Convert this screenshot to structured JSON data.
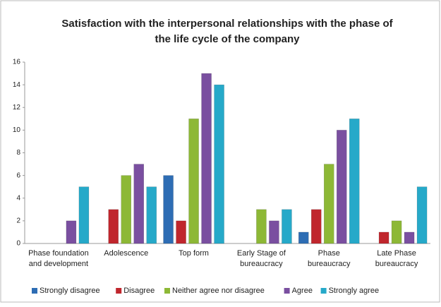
{
  "chart_data": {
    "type": "bar",
    "title": "Satisfaction with the interpersonal relationships with the phase of\nthe life cycle of the company",
    "categories": [
      "Phase foundation\nand development",
      "Adolescence",
      "Top form",
      "Early Stage of\nbureaucracy",
      "Phase\nbureaucracy",
      "Late Phase\nbureaucracy"
    ],
    "series": [
      {
        "name": "Strongly disagree",
        "color": "#2e6db4",
        "values": [
          0,
          0,
          6,
          0,
          1,
          0
        ]
      },
      {
        "name": "Disagree",
        "color": "#c0262d",
        "values": [
          0,
          3,
          2,
          0,
          3,
          1
        ]
      },
      {
        "name": "Neither agree nor disagree",
        "color": "#8db836",
        "values": [
          0,
          6,
          11,
          3,
          7,
          2
        ]
      },
      {
        "name": "Agree",
        "color": "#7a4fa0",
        "values": [
          2,
          7,
          15,
          2,
          10,
          1
        ]
      },
      {
        "name": "Strongly agree",
        "color": "#26a9c9",
        "values": [
          5,
          5,
          14,
          3,
          11,
          5
        ]
      }
    ],
    "ylim": [
      0,
      16
    ],
    "yticks": [
      0,
      2,
      4,
      6,
      8,
      10,
      12,
      14,
      16
    ],
    "grid": false,
    "legend": "bottom"
  }
}
